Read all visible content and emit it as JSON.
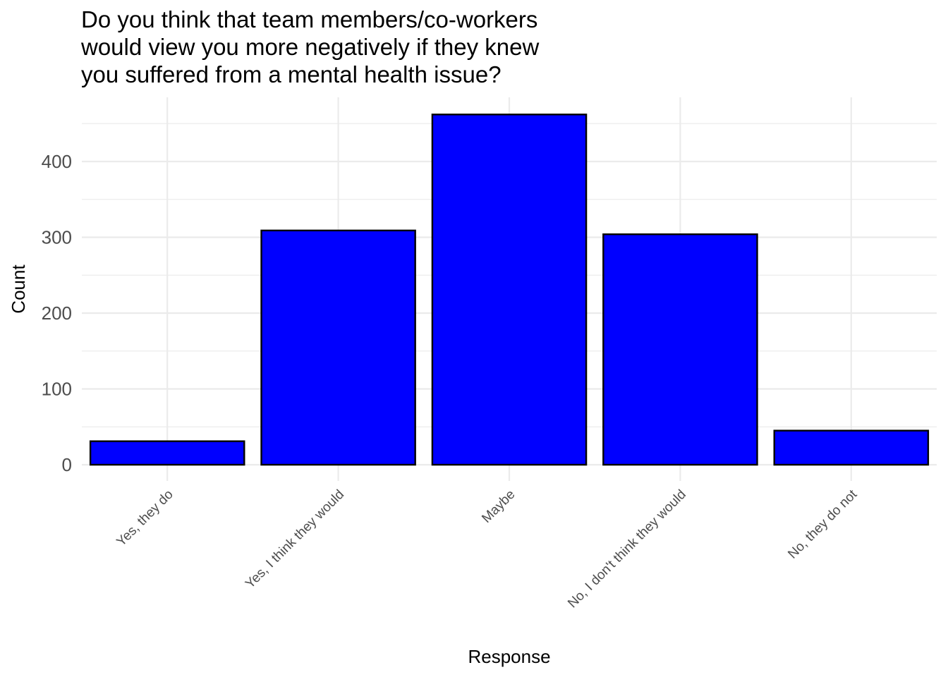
{
  "chart_data": {
    "type": "bar",
    "title": "Do you think that team members/co-workers would view you more negatively if they knew you suffered from a mental health issue?",
    "title_lines": [
      "Do you think that team members/co-workers",
      "would view you more negatively if they knew",
      "you suffered from a mental health issue?"
    ],
    "xlabel": "Response",
    "ylabel": "Count",
    "categories": [
      "Yes, they do",
      "Yes, I think they would",
      "Maybe",
      "No, I don't think they would",
      "No, they do not"
    ],
    "values": [
      31,
      309,
      462,
      304,
      45
    ],
    "yticks": [
      0,
      100,
      200,
      300,
      400
    ],
    "ytick_labels": [
      "0",
      "100",
      "200",
      "300",
      "400"
    ],
    "ylim": [
      -6,
      485
    ],
    "bar_color": "#0000ff",
    "bar_edge_color": "#000000",
    "grid": true,
    "legend": false,
    "theme": "minimal"
  }
}
